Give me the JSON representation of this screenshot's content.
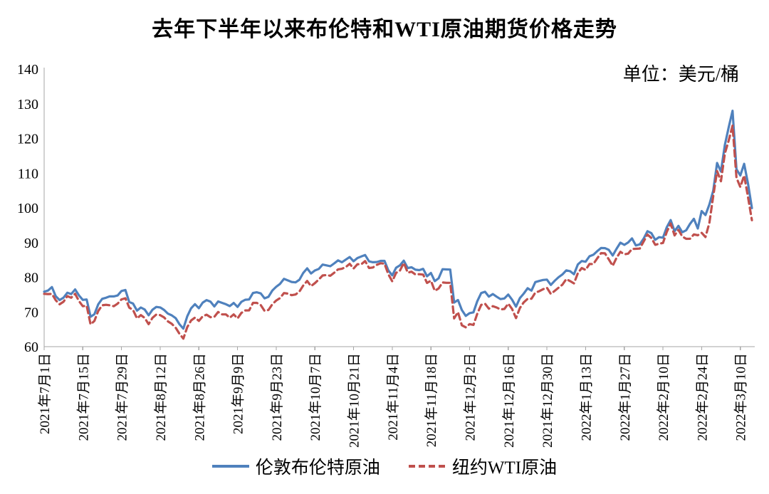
{
  "title": "去年下半年以来布伦特和WTI原油期货价格走势",
  "unit_label": "单位：美元/桶",
  "legend": [
    {
      "label": "伦敦布伦特原油",
      "color": "#4F81BD",
      "style": "solid"
    },
    {
      "label": "纽约WTI原油",
      "color": "#C0504D",
      "style": "dashed"
    }
  ],
  "colors": {
    "brent": "#4F81BD",
    "wti": "#C0504D",
    "axis": "#A6A6A6",
    "text": "#000000"
  },
  "chart_data": {
    "type": "line",
    "title": "去年下半年以来布伦特和WTI原油期货价格走势",
    "xlabel": "",
    "ylabel": "美元/桶",
    "ylim": [
      60,
      140
    ],
    "ytick_interval": 10,
    "yticks": [
      60,
      70,
      80,
      90,
      100,
      110,
      120,
      130,
      140
    ],
    "grid": false,
    "legend_position": "bottom",
    "x_tick_labels": [
      "2021年7月1日",
      "2021年7月15日",
      "2021年7月29日",
      "2021年8月12日",
      "2021年8月26日",
      "2021年9月9日",
      "2021年9月23日",
      "2021年10月7日",
      "2021年10月21日",
      "2021年11月4日",
      "2021年11月18日",
      "2021年12月2日",
      "2021年12月16日",
      "2021年12月30日",
      "2022年1月13日",
      "2022年1月27日",
      "2022年2月10日",
      "2022年2月24日",
      "2022年3月10日"
    ],
    "x_tick_indices": [
      0,
      10,
      20,
      30,
      40,
      50,
      60,
      70,
      80,
      90,
      100,
      110,
      120,
      130,
      140,
      150,
      160,
      170,
      180
    ],
    "dates": [
      "2021/7/1",
      "2021/7/2",
      "2021/7/5",
      "2021/7/6",
      "2021/7/7",
      "2021/7/8",
      "2021/7/9",
      "2021/7/12",
      "2021/7/13",
      "2021/7/14",
      "2021/7/15",
      "2021/7/16",
      "2021/7/19",
      "2021/7/20",
      "2021/7/21",
      "2021/7/22",
      "2021/7/23",
      "2021/7/26",
      "2021/7/27",
      "2021/7/28",
      "2021/7/29",
      "2021/7/30",
      "2021/8/2",
      "2021/8/3",
      "2021/8/4",
      "2021/8/5",
      "2021/8/6",
      "2021/8/9",
      "2021/8/10",
      "2021/8/11",
      "2021/8/12",
      "2021/8/13",
      "2021/8/16",
      "2021/8/17",
      "2021/8/18",
      "2021/8/19",
      "2021/8/20",
      "2021/8/23",
      "2021/8/24",
      "2021/8/25",
      "2021/8/26",
      "2021/8/27",
      "2021/8/30",
      "2021/8/31",
      "2021/9/1",
      "2021/9/2",
      "2021/9/3",
      "2021/9/6",
      "2021/9/7",
      "2021/9/8",
      "2021/9/9",
      "2021/9/10",
      "2021/9/13",
      "2021/9/14",
      "2021/9/15",
      "2021/9/16",
      "2021/9/17",
      "2021/9/20",
      "2021/9/21",
      "2021/9/22",
      "2021/9/23",
      "2021/9/24",
      "2021/9/27",
      "2021/9/28",
      "2021/9/29",
      "2021/9/30",
      "2021/10/1",
      "2021/10/4",
      "2021/10/5",
      "2021/10/6",
      "2021/10/7",
      "2021/10/8",
      "2021/10/11",
      "2021/10/12",
      "2021/10/13",
      "2021/10/14",
      "2021/10/15",
      "2021/10/18",
      "2021/10/19",
      "2021/10/20",
      "2021/10/21",
      "2021/10/22",
      "2021/10/25",
      "2021/10/26",
      "2021/10/27",
      "2021/10/28",
      "2021/10/29",
      "2021/11/1",
      "2021/11/2",
      "2021/11/3",
      "2021/11/4",
      "2021/11/5",
      "2021/11/8",
      "2021/11/9",
      "2021/11/10",
      "2021/11/11",
      "2021/11/12",
      "2021/11/15",
      "2021/11/16",
      "2021/11/17",
      "2021/11/18",
      "2021/11/19",
      "2021/11/22",
      "2021/11/23",
      "2021/11/24",
      "2021/11/25",
      "2021/11/26",
      "2021/11/29",
      "2021/11/30",
      "2021/12/1",
      "2021/12/2",
      "2021/12/3",
      "2021/12/6",
      "2021/12/7",
      "2021/12/8",
      "2021/12/9",
      "2021/12/10",
      "2021/12/13",
      "2021/12/14",
      "2021/12/15",
      "2021/12/16",
      "2021/12/17",
      "2021/12/20",
      "2021/12/21",
      "2021/12/22",
      "2021/12/23",
      "2021/12/24",
      "2021/12/27",
      "2021/12/28",
      "2021/12/29",
      "2021/12/30",
      "2021/12/31",
      "2022/1/3",
      "2022/1/4",
      "2022/1/5",
      "2022/1/6",
      "2022/1/7",
      "2022/1/10",
      "2022/1/11",
      "2022/1/12",
      "2022/1/13",
      "2022/1/14",
      "2022/1/17",
      "2022/1/18",
      "2022/1/19",
      "2022/1/20",
      "2022/1/21",
      "2022/1/24",
      "2022/1/25",
      "2022/1/26",
      "2022/1/27",
      "2022/1/28",
      "2022/1/31",
      "2022/2/1",
      "2022/2/2",
      "2022/2/3",
      "2022/2/4",
      "2022/2/7",
      "2022/2/8",
      "2022/2/9",
      "2022/2/10",
      "2022/2/11",
      "2022/2/14",
      "2022/2/15",
      "2022/2/16",
      "2022/2/17",
      "2022/2/18",
      "2022/2/21",
      "2022/2/22",
      "2022/2/23",
      "2022/2/24",
      "2022/2/25",
      "2022/2/28",
      "2022/3/1",
      "2022/3/2",
      "2022/3/3",
      "2022/3/4",
      "2022/3/7",
      "2022/3/8",
      "2022/3/9",
      "2022/3/10",
      "2022/3/11",
      "2022/3/14",
      "2022/3/15"
    ],
    "series": [
      {
        "name": "伦敦布伦特原油",
        "color": "#4F81BD",
        "dash": "solid",
        "values": [
          75.84,
          76.17,
          77.16,
          74.53,
          73.43,
          74.12,
          75.55,
          75.16,
          76.49,
          74.76,
          73.47,
          73.59,
          68.62,
          69.35,
          72.23,
          73.79,
          74.1,
          74.5,
          74.48,
          74.74,
          76.05,
          76.33,
          72.89,
          72.41,
          70.38,
          71.29,
          70.7,
          69.04,
          70.63,
          71.44,
          71.31,
          70.59,
          69.51,
          69.03,
          68.23,
          66.45,
          65.18,
          68.75,
          71.05,
          72.25,
          71.07,
          72.7,
          73.41,
          72.99,
          71.59,
          73.03,
          72.61,
          72.22,
          71.69,
          72.6,
          71.45,
          72.92,
          73.51,
          73.6,
          75.46,
          75.67,
          75.34,
          73.92,
          74.36,
          76.19,
          77.25,
          78.09,
          79.53,
          79.09,
          78.64,
          78.52,
          79.28,
          81.26,
          82.56,
          81.08,
          81.95,
          82.39,
          83.65,
          83.42,
          83.18,
          84.0,
          84.86,
          84.33,
          85.08,
          85.82,
          84.61,
          85.53,
          85.99,
          86.4,
          84.58,
          84.32,
          84.38,
          84.71,
          84.72,
          81.99,
          80.54,
          82.74,
          83.43,
          84.78,
          82.64,
          82.87,
          82.17,
          82.05,
          82.43,
          80.28,
          81.24,
          78.89,
          79.7,
          82.31,
          82.25,
          82.22,
          72.72,
          73.44,
          70.57,
          68.87,
          69.67,
          69.88,
          73.08,
          75.44,
          75.82,
          74.42,
          75.15,
          74.39,
          73.7,
          73.88,
          75.02,
          73.52,
          71.52,
          73.98,
          75.29,
          76.85,
          76.14,
          78.6,
          78.94,
          79.23,
          79.32,
          77.78,
          78.98,
          80.0,
          80.8,
          81.99,
          81.75,
          80.87,
          83.72,
          84.67,
          84.47,
          86.06,
          86.48,
          87.51,
          88.44,
          88.38,
          87.89,
          86.27,
          88.2,
          89.96,
          89.34,
          90.03,
          91.21,
          89.16,
          89.47,
          91.11,
          93.27,
          92.69,
          90.78,
          91.55,
          91.41,
          94.44,
          96.48,
          93.28,
          94.81,
          92.97,
          93.54,
          95.39,
          96.84,
          94.05,
          99.08,
          97.93,
          100.99,
          104.97,
          112.93,
          110.46,
          118.11,
          123.21,
          127.98,
          111.14,
          109.33,
          112.67,
          106.9,
          99.91
        ]
      },
      {
        "name": "纽约WTI原油",
        "color": "#C0504D",
        "dash": "dashed",
        "values": [
          75.23,
          75.16,
          75.2,
          73.37,
          72.2,
          72.94,
          74.56,
          74.1,
          75.25,
          73.13,
          71.65,
          71.81,
          66.42,
          67.42,
          70.3,
          71.91,
          72.07,
          71.91,
          71.65,
          72.39,
          73.62,
          73.95,
          71.26,
          70.56,
          68.15,
          69.09,
          68.28,
          66.48,
          68.29,
          69.25,
          69.09,
          68.44,
          67.29,
          66.59,
          65.46,
          63.69,
          62.32,
          65.64,
          67.54,
          68.36,
          67.42,
          68.74,
          69.21,
          68.5,
          68.59,
          69.99,
          69.29,
          69.3,
          68.35,
          69.3,
          68.14,
          69.72,
          70.45,
          70.46,
          72.61,
          72.61,
          71.97,
          70.29,
          70.56,
          72.23,
          73.3,
          73.98,
          75.45,
          75.29,
          74.83,
          75.03,
          75.88,
          77.62,
          78.93,
          77.43,
          78.3,
          79.35,
          80.52,
          80.64,
          80.44,
          81.31,
          82.28,
          82.44,
          82.96,
          83.87,
          82.5,
          83.76,
          83.76,
          84.65,
          82.66,
          82.81,
          83.57,
          84.05,
          83.91,
          80.86,
          78.81,
          81.27,
          81.93,
          84.15,
          81.34,
          81.59,
          80.79,
          80.88,
          80.76,
          78.36,
          79.01,
          76.1,
          76.75,
          78.5,
          78.39,
          78.4,
          68.15,
          69.95,
          66.18,
          65.57,
          66.5,
          66.26,
          69.49,
          72.05,
          72.36,
          70.94,
          71.67,
          71.29,
          70.73,
          70.87,
          72.38,
          70.86,
          68.23,
          71.12,
          72.76,
          73.79,
          73.8,
          75.57,
          75.98,
          76.56,
          76.99,
          75.21,
          76.08,
          76.99,
          77.85,
          79.46,
          78.9,
          78.23,
          81.22,
          82.64,
          82.12,
          83.82,
          83.8,
          85.43,
          86.96,
          86.9,
          85.14,
          83.31,
          85.6,
          87.35,
          86.61,
          86.82,
          88.15,
          88.2,
          88.26,
          90.27,
          92.31,
          91.32,
          89.36,
          89.66,
          89.88,
          93.1,
          95.46,
          92.07,
          93.66,
          91.76,
          91.07,
          91.1,
          92.35,
          92.1,
          92.81,
          91.59,
          95.72,
          103.41,
          110.6,
          107.67,
          115.68,
          119.4,
          123.7,
          108.7,
          106.02,
          109.33,
          103.01,
          96.44
        ]
      }
    ]
  }
}
